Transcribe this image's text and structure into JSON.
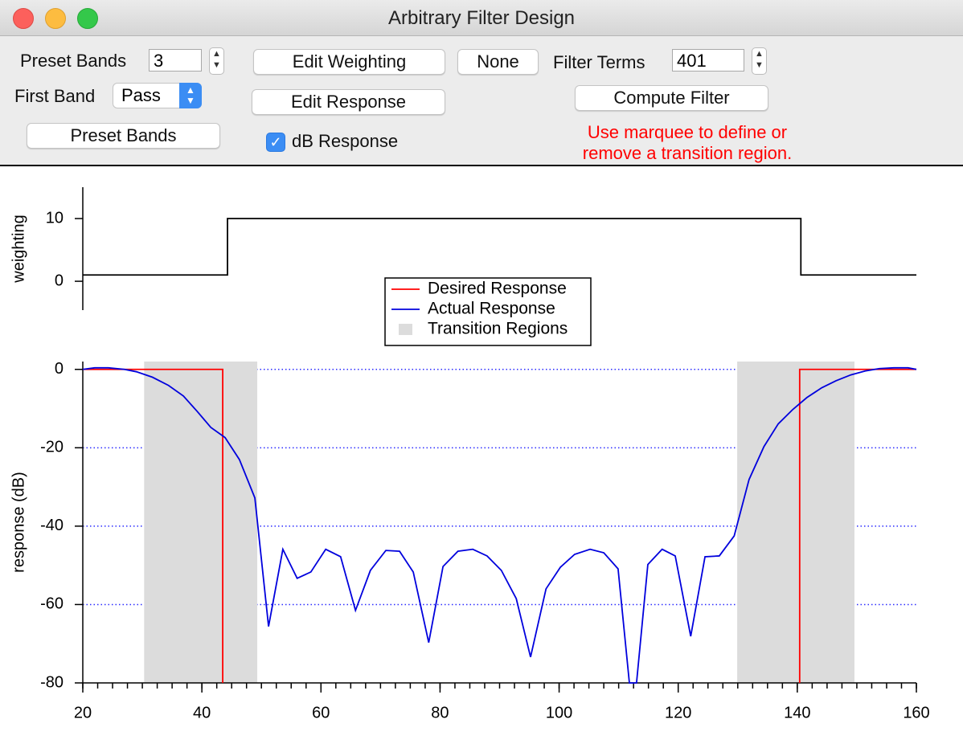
{
  "window": {
    "title": "Arbitrary Filter Design"
  },
  "controls": {
    "preset_bands_label": "Preset Bands",
    "preset_bands_value": "3",
    "first_band_label": "First Band",
    "first_band_value": "Pass",
    "preset_bands_button": "Preset Bands",
    "edit_weighting_button": "Edit Weighting",
    "none_button": "None",
    "filter_terms_label": "Filter Terms",
    "filter_terms_value": "401",
    "edit_response_button": "Edit Response",
    "compute_filter_button": "Compute Filter",
    "db_response_label": "dB Response",
    "db_response_checked": true,
    "hint_lines": [
      "Use marquee to define or",
      "remove a transition region."
    ]
  },
  "chart_data": [
    {
      "type": "line",
      "ylabel": "weighting",
      "xlim": [
        20,
        160
      ],
      "ylim": [
        -4.6,
        15
      ],
      "yticks": [
        0,
        10
      ],
      "series": [
        {
          "color": "#000000",
          "x": [
            20,
            44.3,
            44.3,
            140.6,
            140.6,
            160
          ],
          "values": [
            1,
            1,
            10,
            10,
            1,
            1
          ]
        }
      ]
    },
    {
      "type": "line",
      "ylabel": "response (dB)",
      "xlim": [
        20,
        160
      ],
      "ylim": [
        -80,
        2
      ],
      "xticks": [
        20,
        40,
        60,
        80,
        100,
        120,
        140,
        160
      ],
      "x_minor_step": 2.5,
      "yticks": [
        -80,
        -60,
        -40,
        -20,
        0
      ],
      "grid": true,
      "grid_color": "#2b2bff",
      "legend": "top-center",
      "regions": {
        "name": "Transition Regions",
        "color": "#dcdcdc",
        "spans": [
          [
            30.3,
            49.3
          ],
          [
            129.9,
            149.6
          ]
        ]
      },
      "series": [
        {
          "name": "Desired Response",
          "color": "#ff0000",
          "x": [
            20,
            43.5,
            43.5,
            null,
            140.4,
            140.4,
            160
          ],
          "values": [
            0,
            0,
            -80,
            null,
            -80,
            0,
            0
          ]
        },
        {
          "name": "Actual Response",
          "color": "#0000dd",
          "x": [
            20,
            22,
            24.3,
            27,
            29,
            31.7,
            34.4,
            36.9,
            39.2,
            41.5,
            43.9,
            46.3,
            48.9,
            51.2,
            53.6,
            56,
            58.3,
            60.8,
            63.3,
            65.8,
            68.3,
            70.9,
            73.2,
            75.5,
            78.1,
            80.5,
            83,
            85.5,
            87.9,
            90.3,
            92.8,
            95.2,
            97.8,
            100.2,
            102.6,
            105.2,
            107.5,
            109.9,
            111.8,
            113,
            114.9,
            117.3,
            119.5,
            122.1,
            124.5,
            126.9,
            129.4,
            131.9,
            134.4,
            136.8,
            139.2,
            141.6,
            144.1,
            146.5,
            149,
            151.4,
            153.8,
            156.2,
            158.6,
            160
          ],
          "values": [
            0,
            0.4,
            0.4,
            0,
            -0.6,
            -2,
            -4.1,
            -6.8,
            -10.7,
            -14.8,
            -17.4,
            -23,
            -32.8,
            -65.6,
            -45.9,
            -53.3,
            -51.7,
            -45.9,
            -47.8,
            -61.5,
            -51.3,
            -46.2,
            -46.4,
            -51.7,
            -69.7,
            -50.3,
            -46.4,
            -45.9,
            -47.6,
            -51.3,
            -58.5,
            -73.4,
            -56,
            -50.5,
            -47.2,
            -45.9,
            -46.8,
            -50.9,
            -80,
            -80,
            -49.8,
            -45.9,
            -47.6,
            -68.1,
            -47.8,
            -47.6,
            -42.5,
            -28.1,
            -19.7,
            -13.9,
            -10.3,
            -7.2,
            -4.7,
            -2.9,
            -1.4,
            -0.4,
            0.2,
            0.4,
            0.4,
            0
          ]
        }
      ]
    }
  ]
}
